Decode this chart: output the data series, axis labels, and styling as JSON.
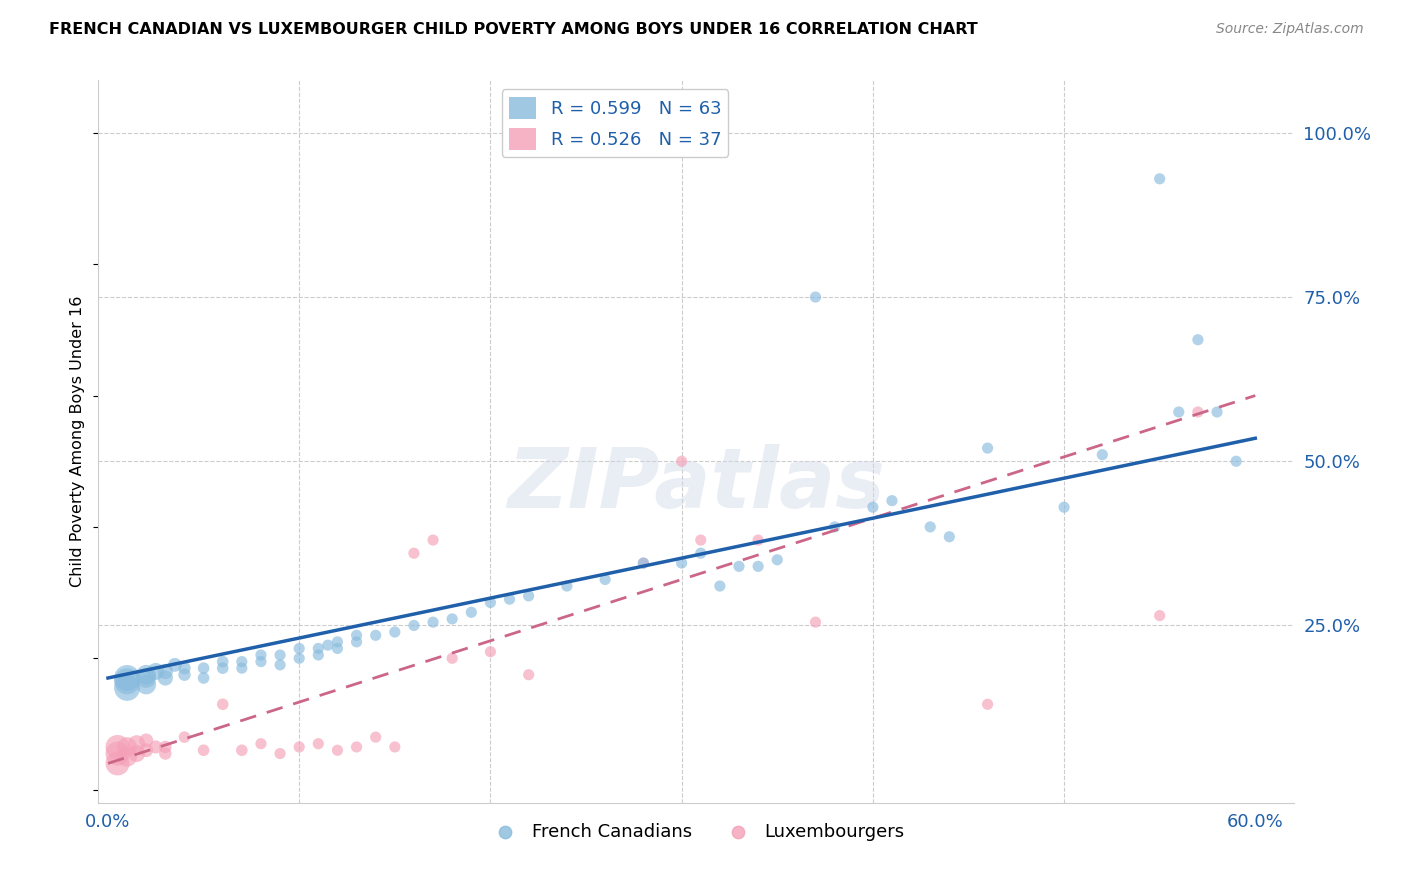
{
  "title": "FRENCH CANADIAN VS LUXEMBOURGER CHILD POVERTY AMONG BOYS UNDER 16 CORRELATION CHART",
  "source": "Source: ZipAtlas.com",
  "ylabel": "Child Poverty Among Boys Under 16",
  "xlim": [
    -0.005,
    0.62
  ],
  "ylim": [
    -0.02,
    1.08
  ],
  "xticks": [
    0.0,
    0.1,
    0.2,
    0.3,
    0.4,
    0.5,
    0.6
  ],
  "xticklabels": [
    "0.0%",
    "",
    "",
    "",
    "",
    "",
    "60.0%"
  ],
  "ytick_positions": [
    0.25,
    0.5,
    0.75,
    1.0
  ],
  "yticklabels": [
    "25.0%",
    "50.0%",
    "75.0%",
    "100.0%"
  ],
  "grid_color": "#cccccc",
  "background_color": "#ffffff",
  "watermark": "ZIPatlas",
  "blue_color": "#88bbdd",
  "blue_line_color": "#2060aa",
  "pink_color": "#f4a0b8",
  "pink_line_color": "#cc6688",
  "legend_R_blue": "R = 0.599",
  "legend_N_blue": "N = 63",
  "legend_R_pink": "R = 0.526",
  "legend_N_pink": "N = 37",
  "blue_scatter_x": [
    0.01,
    0.01,
    0.01,
    0.02,
    0.02,
    0.02,
    0.025,
    0.03,
    0.03,
    0.035,
    0.04,
    0.04,
    0.05,
    0.05,
    0.06,
    0.06,
    0.07,
    0.07,
    0.08,
    0.08,
    0.09,
    0.09,
    0.1,
    0.1,
    0.11,
    0.11,
    0.115,
    0.12,
    0.12,
    0.13,
    0.13,
    0.14,
    0.15,
    0.16,
    0.17,
    0.18,
    0.19,
    0.2,
    0.21,
    0.22,
    0.24,
    0.26,
    0.28,
    0.3,
    0.31,
    0.32,
    0.33,
    0.34,
    0.35,
    0.37,
    0.38,
    0.4,
    0.41,
    0.43,
    0.44,
    0.46,
    0.5,
    0.52,
    0.55,
    0.56,
    0.57,
    0.58,
    0.59
  ],
  "blue_scatter_y": [
    0.155,
    0.165,
    0.17,
    0.16,
    0.17,
    0.175,
    0.18,
    0.17,
    0.18,
    0.19,
    0.175,
    0.185,
    0.17,
    0.185,
    0.185,
    0.195,
    0.185,
    0.195,
    0.195,
    0.205,
    0.19,
    0.205,
    0.2,
    0.215,
    0.205,
    0.215,
    0.22,
    0.215,
    0.225,
    0.225,
    0.235,
    0.235,
    0.24,
    0.25,
    0.255,
    0.26,
    0.27,
    0.285,
    0.29,
    0.295,
    0.31,
    0.32,
    0.345,
    0.345,
    0.36,
    0.31,
    0.34,
    0.34,
    0.35,
    0.75,
    0.4,
    0.43,
    0.44,
    0.4,
    0.385,
    0.52,
    0.43,
    0.51,
    0.93,
    0.575,
    0.685,
    0.575,
    0.5
  ],
  "blue_scatter_sizes": [
    350,
    350,
    350,
    200,
    200,
    200,
    150,
    120,
    120,
    100,
    80,
    80,
    70,
    70,
    70,
    70,
    65,
    65,
    65,
    65,
    65,
    65,
    65,
    65,
    65,
    65,
    65,
    65,
    65,
    65,
    65,
    65,
    65,
    65,
    65,
    65,
    65,
    65,
    65,
    65,
    65,
    65,
    65,
    65,
    65,
    65,
    65,
    65,
    65,
    65,
    65,
    65,
    65,
    65,
    65,
    65,
    65,
    65,
    65,
    65,
    65,
    65,
    65
  ],
  "pink_scatter_x": [
    0.005,
    0.005,
    0.005,
    0.01,
    0.01,
    0.015,
    0.015,
    0.02,
    0.02,
    0.025,
    0.03,
    0.03,
    0.04,
    0.05,
    0.06,
    0.07,
    0.08,
    0.09,
    0.1,
    0.11,
    0.12,
    0.13,
    0.14,
    0.15,
    0.16,
    0.17,
    0.18,
    0.2,
    0.22,
    0.28,
    0.3,
    0.31,
    0.34,
    0.37,
    0.46,
    0.55,
    0.57
  ],
  "pink_scatter_y": [
    0.04,
    0.055,
    0.065,
    0.05,
    0.065,
    0.055,
    0.07,
    0.06,
    0.075,
    0.065,
    0.055,
    0.065,
    0.08,
    0.06,
    0.13,
    0.06,
    0.07,
    0.055,
    0.065,
    0.07,
    0.06,
    0.065,
    0.08,
    0.065,
    0.36,
    0.38,
    0.2,
    0.21,
    0.175,
    0.345,
    0.5,
    0.38,
    0.38,
    0.255,
    0.13,
    0.265,
    0.575
  ],
  "pink_scatter_sizes": [
    300,
    300,
    300,
    200,
    200,
    150,
    150,
    100,
    100,
    90,
    80,
    80,
    70,
    70,
    70,
    70,
    65,
    65,
    65,
    65,
    65,
    65,
    65,
    65,
    65,
    65,
    65,
    65,
    65,
    65,
    65,
    65,
    65,
    65,
    65,
    65,
    65
  ],
  "blue_line_x": [
    0.0,
    0.6
  ],
  "blue_line_y": [
    0.17,
    0.535
  ],
  "pink_line_x": [
    0.0,
    0.6
  ],
  "pink_line_y": [
    0.04,
    0.6
  ]
}
